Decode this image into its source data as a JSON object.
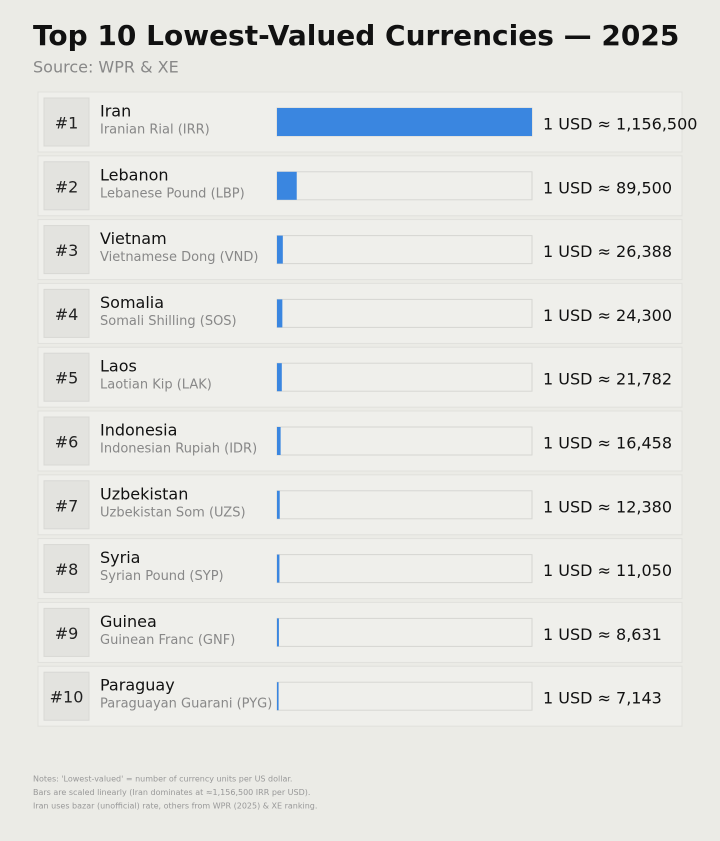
{
  "chart_data": {
    "type": "bar",
    "orientation": "horizontal",
    "title": "Top 10 Lowest-Valued Currencies — 2025",
    "subtitle": "Source: WPR & XE",
    "ranks": [
      "#1",
      "#2",
      "#3",
      "#4",
      "#5",
      "#6",
      "#7",
      "#8",
      "#9",
      "#10"
    ],
    "categories": [
      "Iran",
      "Lebanon",
      "Vietnam",
      "Somalia",
      "Laos",
      "Indonesia",
      "Uzbekistan",
      "Syria",
      "Guinea",
      "Paraguay"
    ],
    "currencies": [
      "Iranian Rial (IRR)",
      "Lebanese Pound (LBP)",
      "Vietnamese Dong (VND)",
      "Somali Shilling (SOS)",
      "Laotian Kip (LAK)",
      "Indonesian Rupiah (IDR)",
      "Uzbekistan Som (UZS)",
      "Syrian Pound (SYP)",
      "Guinean Franc (GNF)",
      "Paraguayan Guarani (PYG)"
    ],
    "values": [
      1156500,
      89500,
      26388,
      24300,
      21782,
      16458,
      12380,
      11050,
      8631,
      7143
    ],
    "value_labels": [
      "1 USD ≈ 1,156,500",
      "1 USD ≈ 89,500",
      "1 USD ≈ 26,388",
      "1 USD ≈ 24,300",
      "1 USD ≈ 21,782",
      "1 USD ≈ 16,458",
      "1 USD ≈ 12,380",
      "1 USD ≈ 11,050",
      "1 USD ≈ 8,631",
      "1 USD ≈ 7,143"
    ],
    "color": "#3a86e0",
    "xlim": [
      0,
      1156500
    ],
    "notes": [
      "Notes: 'Lowest-valued' = number of currency units per US dollar.",
      "Bars are scaled linearly (Iran dominates at ≈1,156,500 IRR per USD).",
      "Iran uses bazar (unofficial) rate, others from WPR (2025) & XE ranking."
    ]
  }
}
